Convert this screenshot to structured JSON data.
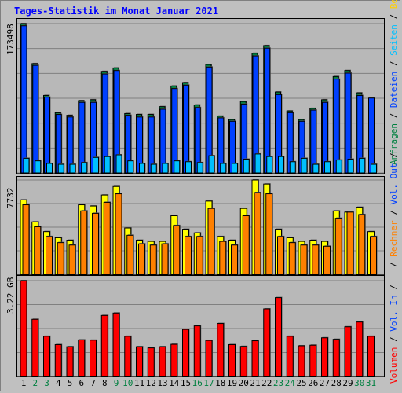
{
  "title": "Tages-Statistik im Monat Januar 2021",
  "colors": {
    "hits": "#008040",
    "files": "#0040ff",
    "pages": "#00c0ff",
    "visits": "#ffff00",
    "sites": "#ff8000",
    "kbytes": "#ff0000",
    "weekend_label": "#008040",
    "weekday_label": "#000000",
    "grid": "#808080"
  },
  "legend": {
    "panel1": [
      {
        "text": "Anfragen",
        "color": "#008040"
      },
      {
        "text": " / ",
        "color": "#000000"
      },
      {
        "text": "Dateien",
        "color": "#0040ff"
      },
      {
        "text": " / ",
        "color": "#000000"
      },
      {
        "text": "Seiten",
        "color": "#00c0ff"
      },
      {
        "text": " / ",
        "color": "#000000"
      },
      {
        "text": "Besuche",
        "color": "#ffd000"
      }
    ],
    "panel2": [
      {
        "text": " / ",
        "color": "#000000"
      },
      {
        "text": "Rechner",
        "color": "#ff8000"
      },
      {
        "text": " / ",
        "color": "#000000"
      },
      {
        "text": "Vol. Out",
        "color": "#0040ff"
      },
      {
        "text": " / ",
        "color": "#000000"
      }
    ],
    "panel3": [
      {
        "text": "Volumen",
        "color": "#ff0000"
      },
      {
        "text": " / ",
        "color": "#000000"
      },
      {
        "text": "Vol. In",
        "color": "#0040ff"
      },
      {
        "text": " / ",
        "color": "#000000"
      }
    ]
  },
  "chart_data": [
    {
      "type": "bar",
      "panel": "hits_files_pages",
      "ymax_label": "173498",
      "ylim": [
        0,
        173498
      ],
      "categories": [
        "1",
        "2",
        "3",
        "4",
        "5",
        "6",
        "7",
        "8",
        "9",
        "10",
        "11",
        "12",
        "13",
        "14",
        "15",
        "16",
        "17",
        "18",
        "19",
        "20",
        "21",
        "22",
        "23",
        "24",
        "25",
        "26",
        "27",
        "28",
        "29",
        "30",
        "31"
      ],
      "weekend": [
        2,
        3,
        9,
        10,
        16,
        17,
        23,
        24,
        30,
        31
      ],
      "series": [
        {
          "name": "Anfragen",
          "color": "#008040",
          "values": [
            173498,
            127000,
            90000,
            70000,
            67000,
            84000,
            85000,
            118000,
            122000,
            69000,
            68000,
            68000,
            77000,
            101000,
            105000,
            79000,
            126000,
            66000,
            62000,
            83000,
            139000,
            148000,
            94000,
            72000,
            62000,
            75000,
            85000,
            112000,
            119000,
            93000,
            0
          ]
        },
        {
          "name": "Dateien",
          "color": "#0040ff",
          "values": [
            171000,
            125000,
            88000,
            68000,
            65000,
            82000,
            82000,
            115000,
            119000,
            67000,
            65000,
            65000,
            74000,
            98000,
            102000,
            76000,
            123000,
            64000,
            60000,
            80000,
            136000,
            145000,
            91000,
            70000,
            60000,
            73000,
            82000,
            109000,
            116000,
            90000,
            87000
          ]
        },
        {
          "name": "Seiten",
          "color": "#00c0ff",
          "values": [
            17000,
            14000,
            11000,
            10000,
            10000,
            12000,
            18000,
            19000,
            21000,
            14000,
            11000,
            10000,
            11000,
            14000,
            13000,
            12000,
            20000,
            11000,
            11000,
            16000,
            22000,
            19000,
            19000,
            13000,
            17000,
            10000,
            13000,
            15000,
            16000,
            17000,
            10000
          ]
        }
      ]
    },
    {
      "type": "bar",
      "panel": "visits_sites",
      "ymax_label": "7732",
      "ylim": [
        0,
        7732
      ],
      "categories": [
        "1",
        "2",
        "3",
        "4",
        "5",
        "6",
        "7",
        "8",
        "9",
        "10",
        "11",
        "12",
        "13",
        "14",
        "15",
        "16",
        "17",
        "18",
        "19",
        "20",
        "21",
        "22",
        "23",
        "24",
        "25",
        "26",
        "27",
        "28",
        "29",
        "30",
        "31"
      ],
      "series": [
        {
          "name": "Besuche",
          "color": "#ffff00",
          "values": [
            6100,
            4300,
            3500,
            3000,
            2800,
            5700,
            5600,
            6500,
            7200,
            3800,
            2800,
            2700,
            2700,
            4800,
            3700,
            3400,
            6000,
            3100,
            2800,
            5400,
            7732,
            7400,
            3700,
            3000,
            2700,
            2800,
            2700,
            5200,
            5100,
            5500,
            3500
          ]
        },
        {
          "name": "Rechner",
          "color": "#ff8000",
          "values": [
            5700,
            3900,
            3100,
            2600,
            2400,
            5200,
            5000,
            5900,
            6600,
            3200,
            2500,
            2400,
            2500,
            4000,
            3100,
            3100,
            5400,
            2700,
            2400,
            4800,
            6700,
            6600,
            3100,
            2600,
            2400,
            2400,
            2300,
            4600,
            5100,
            4900,
            3100
          ]
        }
      ]
    },
    {
      "type": "bar",
      "panel": "volume",
      "ymax_label": "3.22 GB",
      "ylim": [
        0,
        3.22
      ],
      "categories": [
        "1",
        "2",
        "3",
        "4",
        "5",
        "6",
        "7",
        "8",
        "9",
        "10",
        "11",
        "12",
        "13",
        "14",
        "15",
        "16",
        "17",
        "18",
        "19",
        "20",
        "21",
        "22",
        "23",
        "24",
        "25",
        "26",
        "27",
        "28",
        "29",
        "30",
        "31"
      ],
      "series": [
        {
          "name": "Volumen",
          "color": "#ff0000",
          "values": [
            3.22,
            1.92,
            1.35,
            1.07,
            1.0,
            1.23,
            1.22,
            2.05,
            2.13,
            1.35,
            1.0,
            0.96,
            1.0,
            1.08,
            1.58,
            1.7,
            1.21,
            1.78,
            1.07,
            1.01,
            1.2,
            2.27,
            2.65,
            1.35,
            1.03,
            1.05,
            1.3,
            1.25,
            1.67,
            1.83,
            1.35
          ]
        }
      ]
    }
  ],
  "x_labels": [
    "1",
    "2",
    "3",
    "4",
    "5",
    "6",
    "7",
    "8",
    "9",
    "10",
    "11",
    "12",
    "13",
    "14",
    "15",
    "16",
    "17",
    "18",
    "19",
    "20",
    "21",
    "22",
    "23",
    "24",
    "25",
    "26",
    "27",
    "28",
    "29",
    "30",
    "31"
  ]
}
